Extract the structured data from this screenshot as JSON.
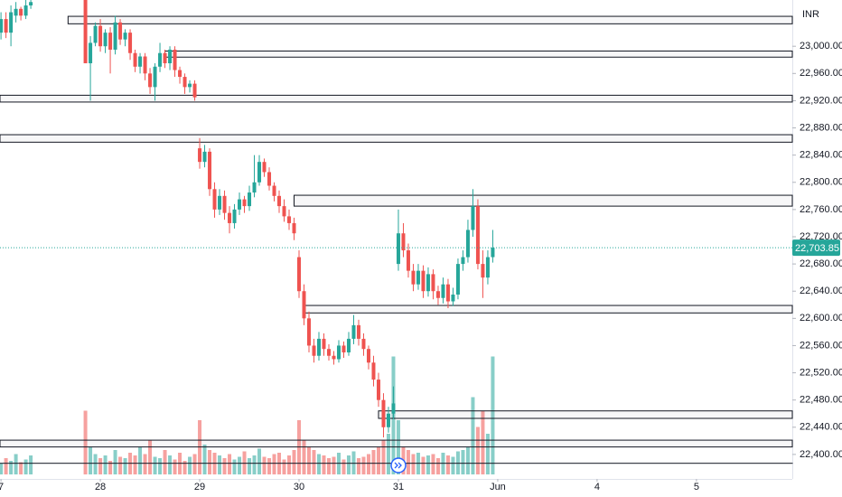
{
  "chart_data": {
    "type": "candlestick",
    "currency": "INR",
    "up_color": "#26a69a",
    "down_color": "#ef5350",
    "xlim": [
      -20.2,
      139.3
    ],
    "xticks": [
      {
        "value": -20,
        "label": "7"
      },
      {
        "value": 0,
        "label": "28"
      },
      {
        "value": 20,
        "label": "29"
      },
      {
        "value": 40,
        "label": "30"
      },
      {
        "value": 60,
        "label": "31"
      },
      {
        "value": 80,
        "label": "Jun"
      },
      {
        "value": 100,
        "label": "4"
      },
      {
        "value": 120,
        "label": "5"
      }
    ],
    "ylim": [
      22364,
      23068
    ],
    "yticks": [
      {
        "value": 22400,
        "label": "22,400.00"
      },
      {
        "value": 22440,
        "label": "22,440.00"
      },
      {
        "value": 22480,
        "label": "22,480.00"
      },
      {
        "value": 22520,
        "label": "22,520.00"
      },
      {
        "value": 22560,
        "label": "22,560.00"
      },
      {
        "value": 22600,
        "label": "22,600.00"
      },
      {
        "value": 22640,
        "label": "22,640.00"
      },
      {
        "value": 22680,
        "label": "22,680.00"
      },
      {
        "value": 22720,
        "label": "22,720.00"
      },
      {
        "value": 22760,
        "label": "22,760.00"
      },
      {
        "value": 22800,
        "label": "22,800.00"
      },
      {
        "value": 22840,
        "label": "22,840.00"
      },
      {
        "value": 22880,
        "label": "22,880.00"
      },
      {
        "value": 22920,
        "label": "22,920.00"
      },
      {
        "value": 22960,
        "label": "22,960.00"
      },
      {
        "value": 23000,
        "label": "23,000.00"
      }
    ],
    "last_price": {
      "value": 22703.85,
      "label": "22,703.85"
    },
    "volume_lim": [
      0,
      100
    ],
    "x": [
      -20,
      -19,
      -18,
      -17,
      -16,
      -15,
      -14,
      -3,
      -2,
      -1,
      0,
      1,
      2,
      3,
      4,
      5,
      6,
      7,
      8,
      9,
      10,
      11,
      12,
      13,
      14,
      15,
      16,
      17,
      18,
      19,
      20,
      21,
      22,
      23,
      24,
      25,
      26,
      27,
      28,
      29,
      30,
      31,
      32,
      33,
      34,
      35,
      36,
      37,
      38,
      39,
      40,
      41,
      42,
      43,
      44,
      45,
      46,
      47,
      48,
      49,
      50,
      51,
      52,
      53,
      54,
      55,
      56,
      57,
      58,
      59,
      60,
      61,
      62,
      63,
      64,
      65,
      66,
      67,
      68,
      69,
      70,
      71,
      72,
      73,
      74,
      75,
      76,
      77,
      78,
      79
    ],
    "open": [
      23020,
      23040,
      23020,
      23045,
      23055,
      23045,
      23060,
      23068,
      22975,
      23005,
      23030,
      23000,
      23020,
      22995,
      23035,
      23010,
      23020,
      22990,
      22970,
      22985,
      22960,
      22940,
      22970,
      22990,
      22975,
      22995,
      22965,
      22955,
      22940,
      22945,
      22850,
      22830,
      22845,
      22790,
      22760,
      22780,
      22755,
      22740,
      22760,
      22775,
      22765,
      22785,
      22800,
      22830,
      22815,
      22795,
      22780,
      22765,
      22750,
      22740,
      22690,
      22640,
      22600,
      22560,
      22545,
      22570,
      22555,
      22545,
      22540,
      22560,
      22550,
      22570,
      22590,
      22570,
      22555,
      22535,
      22510,
      22480,
      22440,
      22460,
      22680,
      22725,
      22700,
      22670,
      22650,
      22670,
      22640,
      22665,
      22640,
      22630,
      22650,
      22625,
      22635,
      22680,
      22690,
      22730,
      22765,
      22680,
      22660,
      22690
    ],
    "high": [
      23050,
      23050,
      23060,
      23065,
      23058,
      23068,
      23068,
      23068,
      23015,
      23035,
      23040,
      23025,
      23028,
      23045,
      23040,
      23025,
      23025,
      22995,
      22990,
      22990,
      22968,
      22975,
      23005,
      22995,
      23000,
      23000,
      22970,
      22960,
      22950,
      22950,
      22865,
      22855,
      22850,
      22800,
      22790,
      22788,
      22765,
      22768,
      22785,
      22780,
      22795,
      22840,
      22840,
      22835,
      22822,
      22800,
      22788,
      22775,
      22760,
      22748,
      22700,
      22650,
      22610,
      22570,
      22580,
      22578,
      22562,
      22552,
      22568,
      22566,
      22580,
      22605,
      22598,
      22578,
      22560,
      22545,
      22520,
      22490,
      22470,
      22500,
      22760,
      22740,
      22710,
      22680,
      22680,
      22678,
      22675,
      22672,
      22648,
      22660,
      22658,
      22645,
      22688,
      22700,
      22745,
      22790,
      22775,
      22700,
      22700,
      22730
    ],
    "low": [
      23010,
      23012,
      23000,
      23035,
      23038,
      23040,
      23055,
      22975,
      22920,
      23000,
      22992,
      22990,
      22960,
      22988,
      23002,
      23000,
      22980,
      22962,
      22960,
      22950,
      22930,
      22920,
      22962,
      22968,
      22965,
      22955,
      22945,
      22930,
      22932,
      22920,
      22820,
      22822,
      22780,
      22748,
      22752,
      22745,
      22725,
      22732,
      22752,
      22755,
      22758,
      22778,
      22795,
      22808,
      22788,
      22772,
      22755,
      22742,
      22730,
      22715,
      22630,
      22590,
      22550,
      22535,
      22538,
      22545,
      22538,
      22532,
      22535,
      22542,
      22545,
      22562,
      22560,
      22545,
      22525,
      22500,
      22470,
      22425,
      22432,
      22452,
      22670,
      22690,
      22660,
      22640,
      22642,
      22630,
      22632,
      22628,
      22620,
      22622,
      22615,
      22618,
      22628,
      22670,
      22682,
      22720,
      22672,
      22630,
      22650,
      22682
    ],
    "close": [
      23040,
      23020,
      23050,
      23055,
      23045,
      23060,
      23065,
      22975,
      23005,
      23030,
      23000,
      23020,
      22995,
      23035,
      23010,
      23020,
      22990,
      22970,
      22985,
      22960,
      22940,
      22970,
      22990,
      22975,
      22995,
      22965,
      22955,
      22940,
      22945,
      22925,
      22830,
      22845,
      22790,
      22760,
      22780,
      22755,
      22740,
      22760,
      22775,
      22765,
      22785,
      22800,
      22830,
      22815,
      22795,
      22780,
      22765,
      22750,
      22740,
      22725,
      22640,
      22600,
      22560,
      22545,
      22570,
      22555,
      22545,
      22540,
      22560,
      22550,
      22570,
      22590,
      22570,
      22555,
      22535,
      22510,
      22480,
      22440,
      22460,
      22475,
      22725,
      22700,
      22670,
      22650,
      22670,
      22640,
      22665,
      22640,
      22630,
      22650,
      22625,
      22635,
      22680,
      22690,
      22730,
      22765,
      22680,
      22660,
      22690,
      22703.85
    ],
    "volume": [
      8,
      12,
      10,
      15,
      9,
      11,
      14,
      47,
      20,
      15,
      12,
      14,
      10,
      18,
      13,
      12,
      16,
      14,
      20,
      15,
      25,
      13,
      12,
      18,
      14,
      11,
      16,
      10,
      13,
      15,
      40,
      22,
      18,
      16,
      14,
      12,
      15,
      11,
      13,
      17,
      12,
      14,
      19,
      13,
      12,
      15,
      16,
      11,
      14,
      18,
      40,
      25,
      20,
      18,
      15,
      14,
      12,
      13,
      16,
      11,
      14,
      17,
      12,
      13,
      15,
      18,
      20,
      25,
      30,
      87,
      40,
      20,
      18,
      15,
      16,
      13,
      14,
      15,
      12,
      16,
      14,
      13,
      17,
      18,
      20,
      57,
      35,
      47,
      30,
      87
    ],
    "zones": [
      {
        "top": 23044,
        "bottom": 23033,
        "from": -6.5
      },
      {
        "top": 22993,
        "bottom": 22984,
        "from": 13
      },
      {
        "top": 22928,
        "bottom": 22918,
        "from": -20.2
      },
      {
        "top": 22870,
        "bottom": 22859,
        "from": -20.2
      },
      {
        "top": 22781,
        "bottom": 22765,
        "from": 39
      },
      {
        "top": 22619,
        "bottom": 22608,
        "from": 41
      },
      {
        "top": 22464,
        "bottom": 22453,
        "from": 56
      },
      {
        "top": 22421,
        "bottom": 22411,
        "from": -20.2
      },
      {
        "top": 22387,
        "bottom": 22387,
        "from": -20.2
      }
    ]
  }
}
